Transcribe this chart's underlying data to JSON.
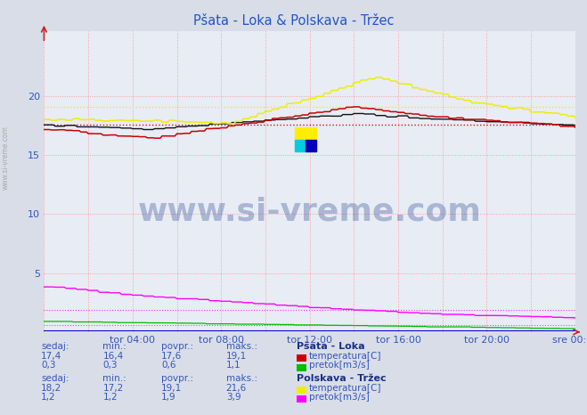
{
  "title": "Pšata - Loka & Polskava - Tržec",
  "title_color": "#2255cc",
  "bg_color": "#d8dde8",
  "plot_bg_color": "#e8ecf4",
  "x_labels": [
    "tor 04:00",
    "tor 08:00",
    "tor 12:00",
    "tor 16:00",
    "tor 20:00",
    "sre 00:00"
  ],
  "n_points": 289,
  "ylim_min": 0,
  "ylim_max": 25,
  "colors": {
    "psata_temp": "#cc0000",
    "psata_pretok": "#00bb00",
    "polskava_temp": "#eeee00",
    "polskava_pretok": "#ff00ff",
    "height": "#000000",
    "avg_line": "dotted"
  },
  "psata_temp_min": 16.4,
  "psata_temp_max": 19.1,
  "psata_temp_avg": 17.6,
  "psata_temp_cur": 17.4,
  "psata_pretok_min": 0.3,
  "psata_pretok_max": 1.1,
  "psata_pretok_avg": 0.6,
  "psata_pretok_cur": 0.3,
  "polskava_temp_min": 17.2,
  "polskava_temp_max": 21.6,
  "polskava_temp_avg": 19.1,
  "polskava_temp_cur": 18.2,
  "polskava_pretok_min": 1.2,
  "polskava_pretok_max": 3.9,
  "polskava_pretok_avg": 1.9,
  "polskava_pretok_cur": 1.2,
  "watermark": "www.si-vreme.com",
  "watermark_color": "#1a3a8a",
  "left_label": "www.si-vreme.com",
  "col_blue": "#3355bb",
  "col_bold": "#1a2f88"
}
